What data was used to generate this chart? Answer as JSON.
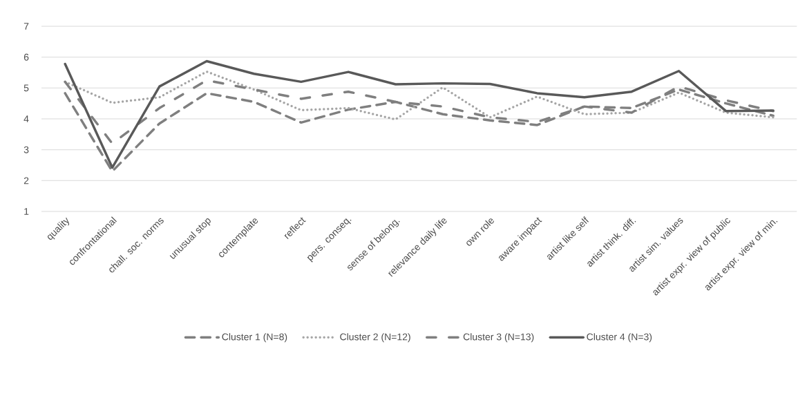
{
  "chart_data": {
    "type": "line",
    "categories": [
      "quality",
      "confrontational",
      "chall. soc. norms",
      "unusual stop",
      "contemplate",
      "reflect",
      "pers. conseq.",
      "sense of belong.",
      "relevance daily life",
      "own role",
      "aware impact",
      "artist like self",
      "artist think. diff.",
      "artist sim. values",
      "artist expr. view of public",
      "artist expr. view of min."
    ],
    "series": [
      {
        "name": "Cluster 1 (N=8)",
        "color": "#7f7f7f",
        "line_style": "dashed",
        "values": [
          4.83,
          2.3,
          3.85,
          4.83,
          4.55,
          3.88,
          4.3,
          4.55,
          4.15,
          3.95,
          3.8,
          4.4,
          4.35,
          4.95,
          4.5,
          4.1
        ]
      },
      {
        "name": "Cluster 2 (N=12)",
        "color": "#a5a5a5",
        "line_style": "dotted",
        "values": [
          5.2,
          4.52,
          4.7,
          5.53,
          4.95,
          4.28,
          4.35,
          3.98,
          5.02,
          4.05,
          4.72,
          4.15,
          4.2,
          4.85,
          4.2,
          4.05
        ]
      },
      {
        "name": "Cluster 3 (N=13)",
        "color": "#7f7f7f",
        "line_style": "dashdot",
        "values": [
          5.2,
          3.2,
          4.35,
          5.25,
          4.95,
          4.65,
          4.88,
          4.55,
          4.4,
          4.05,
          3.9,
          4.4,
          4.2,
          5.05,
          4.6,
          4.25
        ]
      },
      {
        "name": "Cluster 4 (N=3)",
        "color": "#595959",
        "line_style": "solid",
        "values": [
          5.78,
          2.42,
          5.05,
          5.87,
          5.46,
          5.2,
          5.52,
          5.12,
          5.15,
          5.13,
          4.83,
          4.7,
          4.88,
          5.55,
          4.25,
          4.27
        ]
      }
    ],
    "ylim": [
      1,
      7
    ],
    "yticks": [
      1,
      2,
      3,
      4,
      5,
      6,
      7
    ],
    "grid": "y",
    "legend": "bottom"
  }
}
